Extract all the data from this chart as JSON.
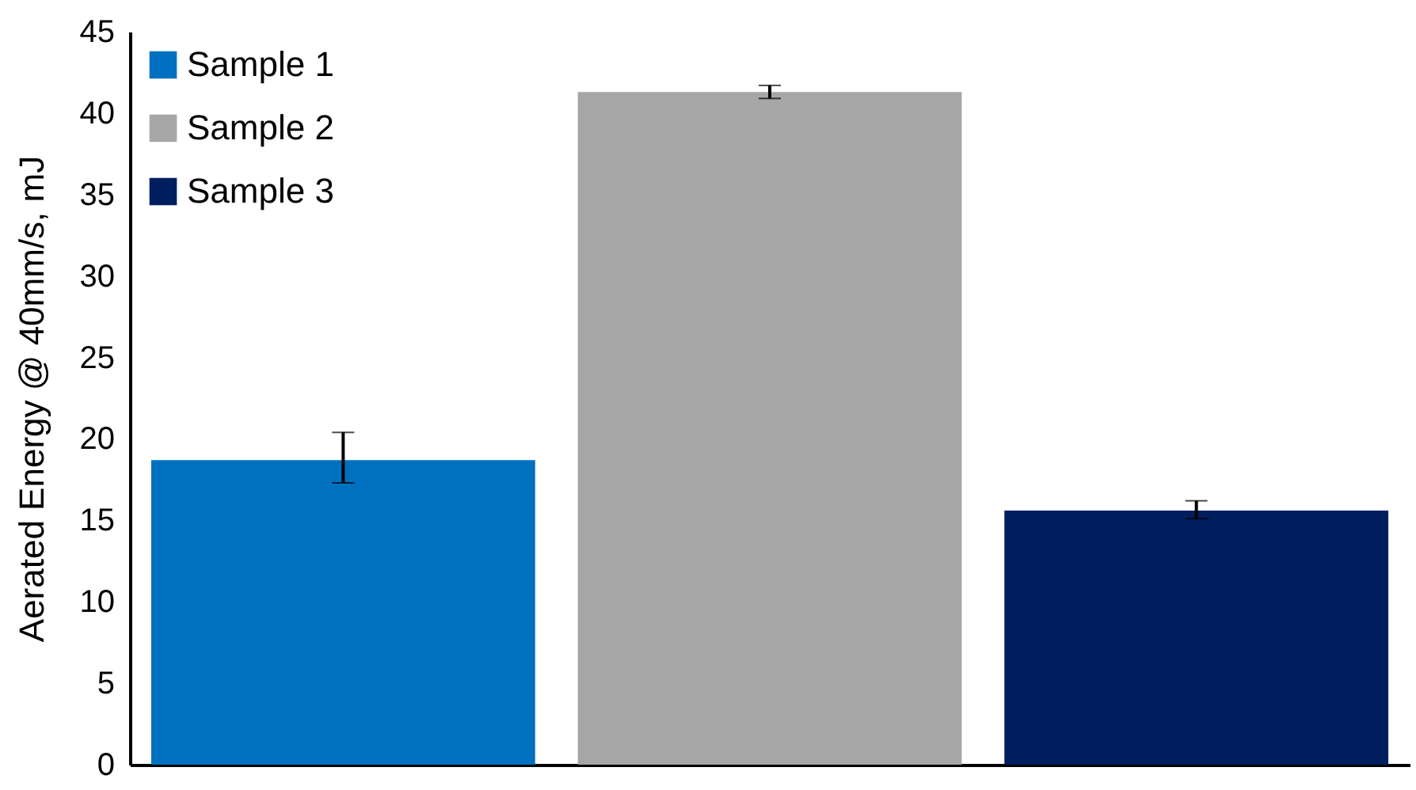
{
  "chart_data": {
    "type": "bar",
    "ylabel": "Aerated Energy @ 40mm/s, mJ",
    "categories": [
      null,
      null,
      null
    ],
    "series": [
      {
        "name": "Sample 1",
        "color": "#0070c0",
        "values": [
          18.7,
          null,
          null
        ],
        "errors": [
          [
            17.3,
            20.4
          ],
          null,
          null
        ]
      },
      {
        "name": "Sample 2",
        "color": "#a6a6a6",
        "values": [
          null,
          41.3,
          null
        ],
        "errors": [
          null,
          [
            40.9,
            41.7
          ],
          null
        ]
      },
      {
        "name": "Sample 3",
        "color": "#001f5f",
        "values": [
          null,
          null,
          15.6
        ],
        "errors": [
          null,
          null,
          [
            15.1,
            16.2
          ]
        ]
      }
    ],
    "ylim": [
      0,
      45
    ],
    "yticks": [
      0,
      5,
      10,
      15,
      20,
      25,
      30,
      35,
      40,
      45
    ],
    "grid": false,
    "legend": "top left",
    "tick_labels": "y"
  }
}
